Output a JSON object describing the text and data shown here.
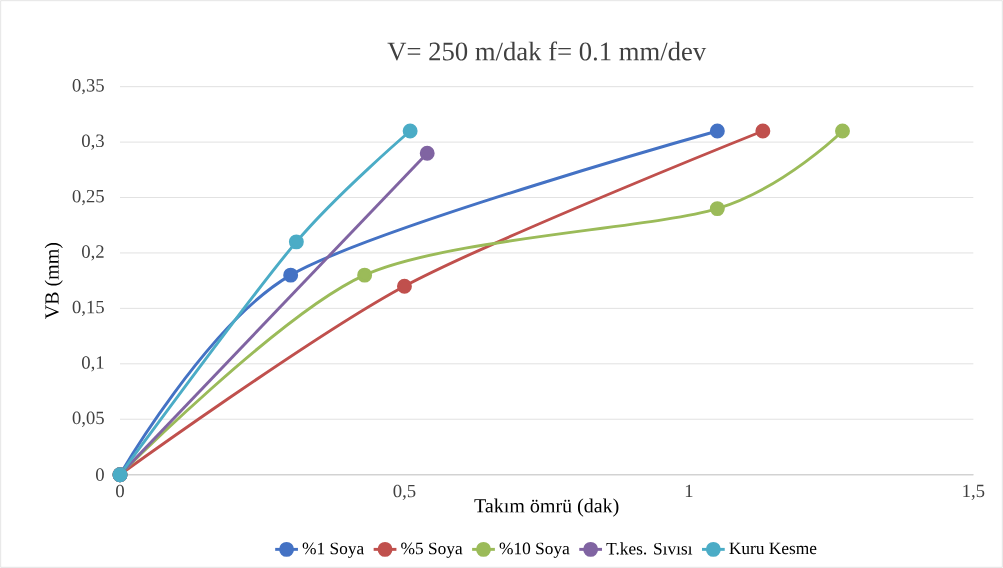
{
  "chart_data": {
    "type": "line",
    "title": "V= 250 m/dak    f= 0.1 mm/dev",
    "xlabel": "Takım ömrü (dak)",
    "ylabel": "VB (mm)",
    "series": [
      {
        "name": "%1 Soya",
        "color": "#4472c4",
        "x": [
          0,
          0.3,
          1.05
        ],
        "values": [
          0,
          0.18,
          0.31
        ]
      },
      {
        "name": "%5 Soya",
        "color": "#c0504d",
        "x": [
          0,
          0.5,
          1.13
        ],
        "values": [
          0,
          0.17,
          0.31
        ]
      },
      {
        "name": "%10 Soya",
        "color": "#9bbb59",
        "x": [
          0,
          0.43,
          1.05,
          1.27
        ],
        "values": [
          0,
          0.18,
          0.24,
          0.31
        ]
      },
      {
        "name": "T.kes. Sıvısı",
        "color": "#8064a2",
        "x": [
          0,
          0.54
        ],
        "values": [
          0,
          0.29
        ]
      },
      {
        "name": "Kuru Kesme",
        "color": "#4bacc6",
        "x": [
          0,
          0.31,
          0.51
        ],
        "values": [
          0,
          0.21,
          0.31
        ]
      }
    ],
    "xlim": [
      0,
      1.5
    ],
    "ylim": [
      0,
      0.35
    ],
    "xticks": [
      0,
      {
        "value": 0.5,
        "label": "0,5"
      },
      1,
      {
        "value": 1.5,
        "label": "1,5"
      }
    ],
    "yticks": [
      0,
      {
        "value": 0.05,
        "label": "0,05"
      },
      {
        "value": 0.1,
        "label": "0,1"
      },
      {
        "value": 0.15,
        "label": "0,15"
      },
      {
        "value": 0.2,
        "label": "0,2"
      },
      {
        "value": 0.25,
        "label": "0,25"
      },
      {
        "value": 0.3,
        "label": "0,3"
      },
      {
        "value": 0.35,
        "label": "0,35"
      }
    ],
    "grid": "y",
    "legend": "bottom",
    "marker": "circle",
    "line_style": "solid"
  }
}
